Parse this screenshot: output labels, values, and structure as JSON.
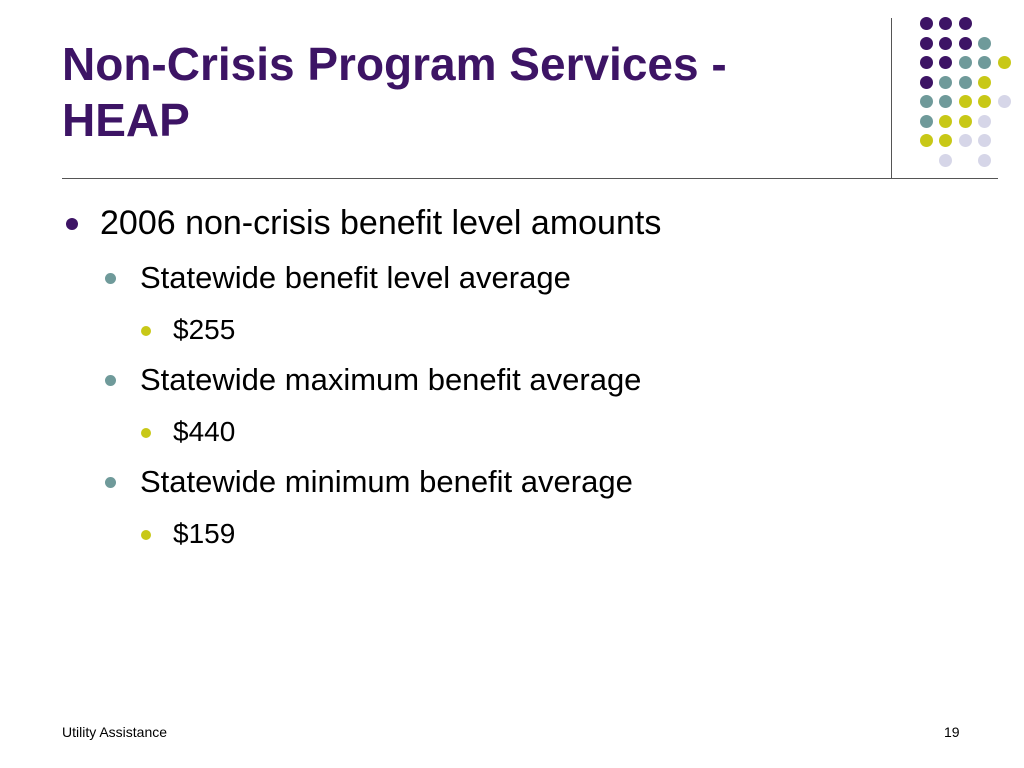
{
  "slide": {
    "title_line1": "Non-Crisis Program Services -",
    "title_line2": "HEAP",
    "footer_left": "Utility Assistance",
    "page_number": "19"
  },
  "colors": {
    "title": "#3d1465",
    "purple": "#3d1465",
    "teal": "#6f9a9a",
    "lime": "#c8c817",
    "lavender": "#d6d6e8"
  },
  "bullets": [
    {
      "level": 1,
      "text": "2006 non-crisis benefit level amounts"
    },
    {
      "level": 2,
      "text": "Statewide benefit level average"
    },
    {
      "level": 3,
      "text": "$255"
    },
    {
      "level": 2,
      "text": "Statewide maximum benefit average"
    },
    {
      "level": 3,
      "text": "$440"
    },
    {
      "level": 2,
      "text": "Statewide minimum benefit average"
    },
    {
      "level": 3,
      "text": "$159"
    }
  ]
}
